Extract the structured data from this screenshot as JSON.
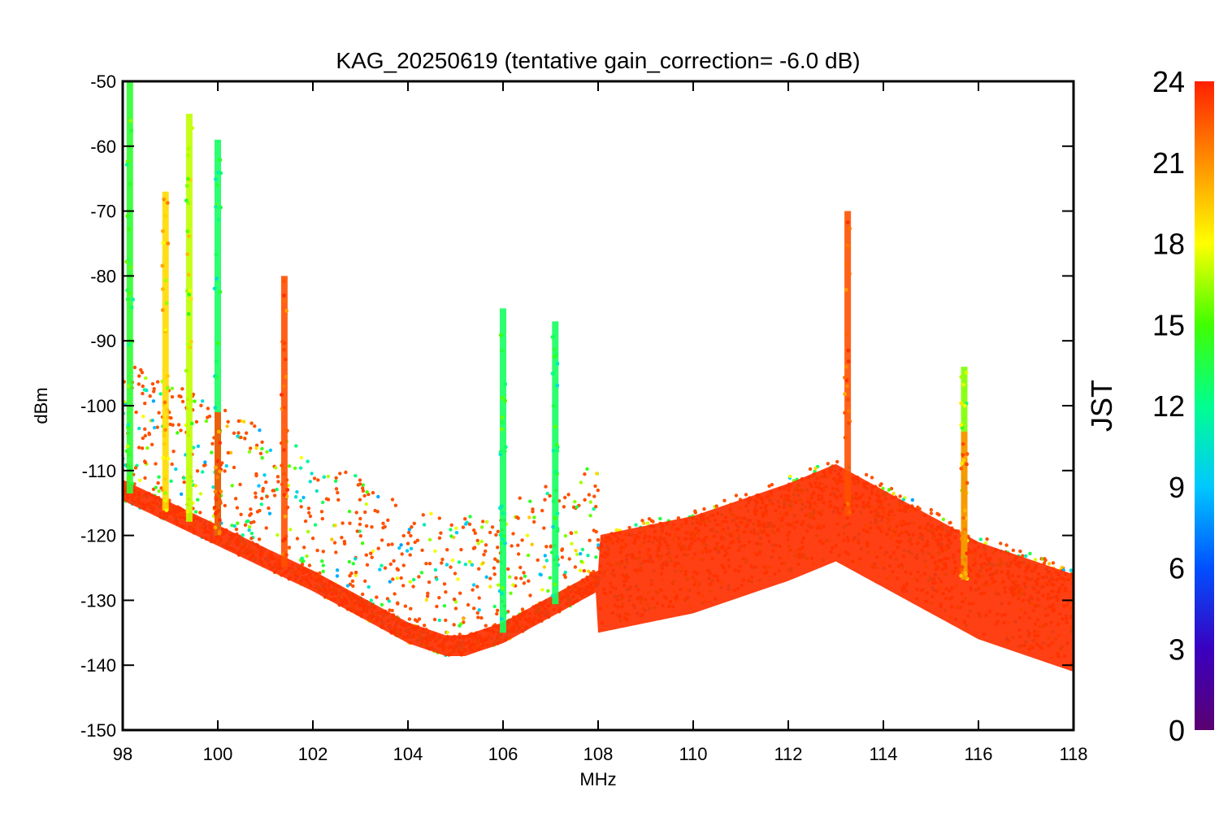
{
  "chart_data": {
    "type": "scatter",
    "title": "KAG_20250619 (tentative gain_correction= -6.0 dB)",
    "xlabel": "MHz",
    "ylabel": "dBm",
    "xlim": [
      98,
      118
    ],
    "ylim": [
      -150,
      -50
    ],
    "xticks": [
      98,
      100,
      102,
      104,
      106,
      108,
      110,
      112,
      114,
      116,
      118
    ],
    "yticks": [
      -50,
      -60,
      -70,
      -80,
      -90,
      -100,
      -110,
      -120,
      -130,
      -140,
      -150
    ],
    "grid": false,
    "colorbar": {
      "label": "JST",
      "range": [
        0,
        24
      ],
      "ticks": [
        0,
        3,
        6,
        9,
        12,
        15,
        18,
        21,
        24
      ],
      "colormap": "rainbow (purple-blue-cyan-green-yellow-orange-red)"
    },
    "noise_floor": [
      {
        "x": 98,
        "y": -113
      },
      {
        "x": 100,
        "y": -120
      },
      {
        "x": 102,
        "y": -127
      },
      {
        "x": 104,
        "y": -135
      },
      {
        "x": 104.8,
        "y": -137
      },
      {
        "x": 105.2,
        "y": -137
      },
      {
        "x": 106,
        "y": -135
      },
      {
        "x": 107,
        "y": -131
      },
      {
        "x": 108,
        "y": -127
      },
      {
        "x": 110,
        "y": -124
      },
      {
        "x": 112,
        "y": -119
      },
      {
        "x": 113,
        "y": -116
      },
      {
        "x": 114,
        "y": -120
      },
      {
        "x": 116,
        "y": -128
      },
      {
        "x": 118,
        "y": -133
      }
    ],
    "signals": [
      {
        "x": 98.15,
        "y_top": -50,
        "jst": 14
      },
      {
        "x": 98.9,
        "y_top": -67,
        "jst": 19
      },
      {
        "x": 99.4,
        "y_top": -55,
        "jst": 17
      },
      {
        "x": 100.0,
        "y_top": -59,
        "jst": 13
      },
      {
        "x": 100.0,
        "y_top": -101,
        "jst": 23
      },
      {
        "x": 101.4,
        "y_top": -80,
        "jst": 23
      },
      {
        "x": 106.0,
        "y_top": -85,
        "jst": 13
      },
      {
        "x": 107.1,
        "y_top": -87,
        "jst": 13
      },
      {
        "x": 113.25,
        "y_top": -70,
        "jst": 23
      },
      {
        "x": 115.7,
        "y_top": -94,
        "jst": 16
      },
      {
        "x": 115.7,
        "y_top": -104,
        "jst": 21
      }
    ]
  }
}
